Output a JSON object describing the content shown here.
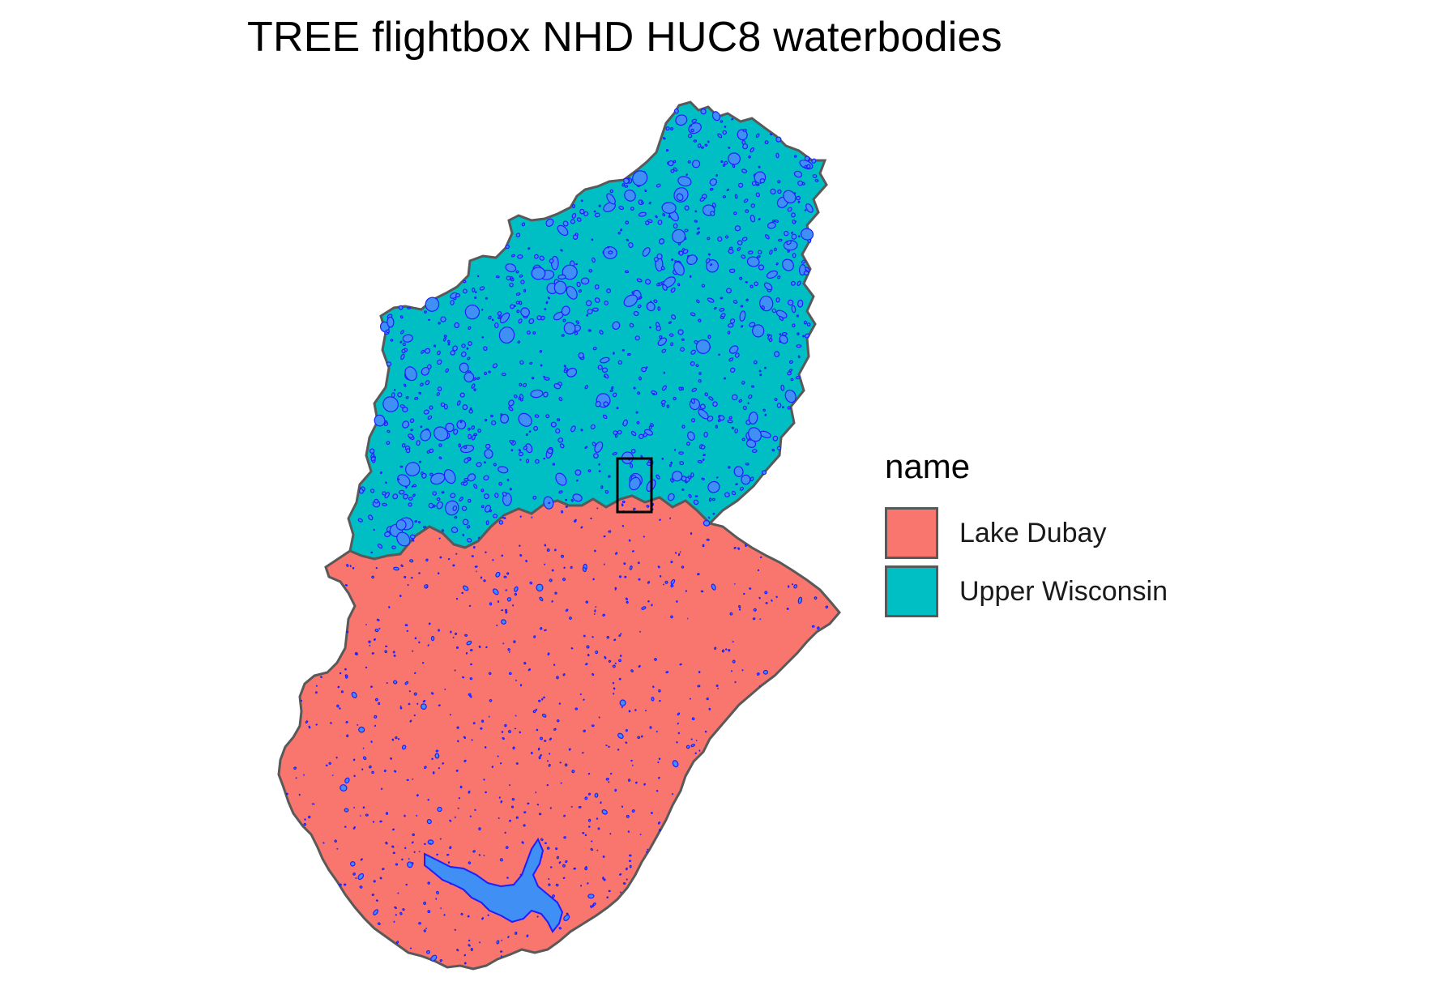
{
  "title": "TREE flightbox NHD HUC8 waterbodies",
  "legend": {
    "title": "name",
    "items": [
      {
        "label": "Lake Dubay",
        "color": "#F8766D"
      },
      {
        "label": "Upper Wisconsin",
        "color": "#00BFC4"
      }
    ]
  },
  "colors": {
    "boundary": "#595959",
    "water_fill": "#3F8FF5",
    "water_outline": "#1E1EFF",
    "flightbox_outline": "#000000"
  },
  "regions": [
    "Upper Wisconsin",
    "Lake Dubay"
  ],
  "features": [
    "waterbodies",
    "flightbox"
  ]
}
